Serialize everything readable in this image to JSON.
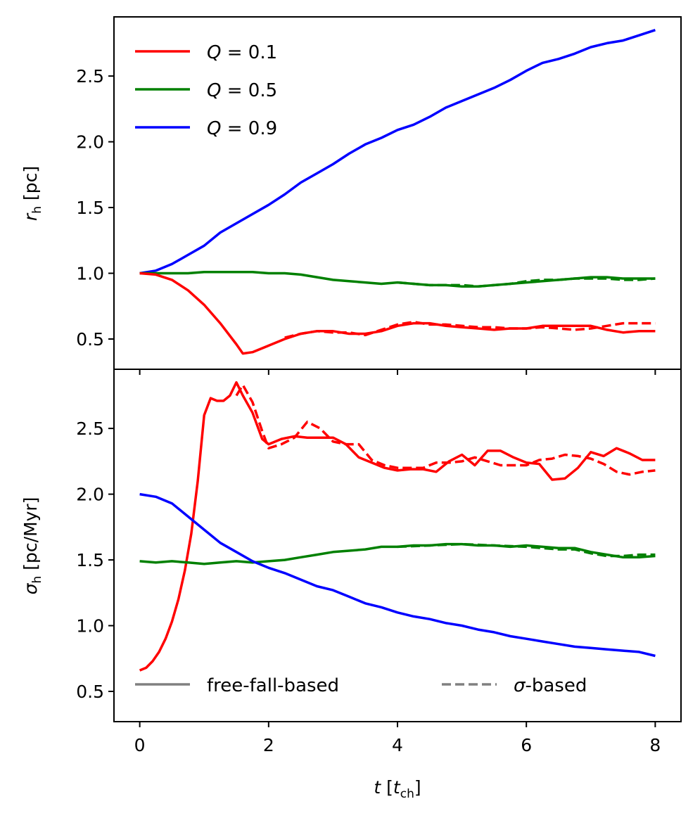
{
  "chart_data": [
    {
      "panel": "top",
      "type": "line",
      "ylabel_symbol": "r",
      "ylabel_subscript": "h",
      "ylabel_unit": "[pc]",
      "ylim": [
        0.27,
        2.95
      ],
      "xlim": [
        -0.4,
        8.4
      ],
      "yticks": [
        0.5,
        1.0,
        1.5,
        2.0,
        2.5
      ],
      "ytick_labels": [
        "0.5",
        "1.0",
        "1.5",
        "2.0",
        "2.5"
      ],
      "legend": [
        {
          "prefix": "Q",
          "suffix": " = 0.1",
          "color": "#ff0000",
          "style": "solid"
        },
        {
          "prefix": "Q",
          "suffix": " = 0.5",
          "color": "#008000",
          "style": "solid"
        },
        {
          "prefix": "Q",
          "suffix": " = 0.9",
          "color": "#0000ff",
          "style": "solid"
        }
      ],
      "series": [
        {
          "name": "Q=0.9 free-fall-based",
          "color": "#0000ff",
          "style": "solid",
          "x": [
            0,
            0.25,
            0.5,
            0.75,
            1.0,
            1.25,
            1.5,
            1.75,
            2.0,
            2.25,
            2.5,
            2.75,
            3.0,
            3.25,
            3.5,
            3.75,
            4.0,
            4.25,
            4.5,
            4.75,
            5.0,
            5.25,
            5.5,
            5.75,
            6.0,
            6.25,
            6.5,
            6.75,
            7.0,
            7.25,
            7.5,
            7.75,
            8.0
          ],
          "y": [
            1.0,
            1.02,
            1.07,
            1.14,
            1.21,
            1.31,
            1.38,
            1.45,
            1.52,
            1.6,
            1.69,
            1.76,
            1.83,
            1.91,
            1.98,
            2.03,
            2.09,
            2.13,
            2.19,
            2.26,
            2.31,
            2.36,
            2.41,
            2.47,
            2.54,
            2.6,
            2.63,
            2.67,
            2.72,
            2.75,
            2.77,
            2.81,
            2.85
          ]
        },
        {
          "name": "Q=0.5 free-fall-based",
          "color": "#008000",
          "style": "solid",
          "x": [
            0,
            0.25,
            0.5,
            0.75,
            1.0,
            1.25,
            1.5,
            1.75,
            2.0,
            2.25,
            2.5,
            2.75,
            3.0,
            3.25,
            3.5,
            3.75,
            4.0,
            4.25,
            4.5,
            4.75,
            5.0,
            5.25,
            5.5,
            5.75,
            6.0,
            6.25,
            6.5,
            6.75,
            7.0,
            7.25,
            7.5,
            7.75,
            8.0
          ],
          "y": [
            1.0,
            1.0,
            1.0,
            1.0,
            1.01,
            1.01,
            1.01,
            1.01,
            1.0,
            1.0,
            0.99,
            0.97,
            0.95,
            0.94,
            0.93,
            0.92,
            0.93,
            0.92,
            0.91,
            0.91,
            0.9,
            0.9,
            0.91,
            0.92,
            0.93,
            0.94,
            0.95,
            0.96,
            0.97,
            0.97,
            0.96,
            0.96,
            0.96
          ]
        },
        {
          "name": "Q=0.5 sigma-based",
          "color": "#008000",
          "style": "dashed",
          "x": [
            4.0,
            4.25,
            4.5,
            4.75,
            5.0,
            5.25,
            5.5,
            5.75,
            6.0,
            6.25,
            6.5,
            6.75,
            7.0,
            7.25,
            7.5,
            7.75,
            8.0
          ],
          "y": [
            0.93,
            0.92,
            0.91,
            0.91,
            0.91,
            0.9,
            0.91,
            0.92,
            0.94,
            0.95,
            0.95,
            0.96,
            0.96,
            0.96,
            0.95,
            0.95,
            0.96
          ]
        },
        {
          "name": "Q=0.1 free-fall-based",
          "color": "#ff0000",
          "style": "solid",
          "x": [
            0,
            0.25,
            0.5,
            0.75,
            1.0,
            1.25,
            1.5,
            1.6,
            1.75,
            2.0,
            2.25,
            2.5,
            2.75,
            3.0,
            3.25,
            3.5,
            3.75,
            4.0,
            4.25,
            4.5,
            4.75,
            5.0,
            5.25,
            5.5,
            5.75,
            6.0,
            6.25,
            6.5,
            6.75,
            7.0,
            7.25,
            7.5,
            7.75,
            8.0
          ],
          "y": [
            1.0,
            0.99,
            0.95,
            0.87,
            0.76,
            0.62,
            0.46,
            0.39,
            0.4,
            0.45,
            0.5,
            0.54,
            0.56,
            0.56,
            0.54,
            0.54,
            0.56,
            0.6,
            0.62,
            0.62,
            0.6,
            0.59,
            0.58,
            0.57,
            0.58,
            0.58,
            0.6,
            0.6,
            0.6,
            0.6,
            0.57,
            0.55,
            0.56,
            0.56
          ]
        },
        {
          "name": "Q=0.1 sigma-based",
          "color": "#ff0000",
          "style": "dashed",
          "x": [
            2.25,
            2.5,
            2.75,
            3.0,
            3.25,
            3.5,
            3.75,
            4.0,
            4.25,
            4.5,
            4.75,
            5.0,
            5.25,
            5.5,
            5.75,
            6.0,
            6.25,
            6.5,
            6.75,
            7.0,
            7.25,
            7.5,
            7.75,
            8.0
          ],
          "y": [
            0.51,
            0.54,
            0.56,
            0.55,
            0.55,
            0.53,
            0.57,
            0.61,
            0.63,
            0.61,
            0.61,
            0.6,
            0.59,
            0.59,
            0.58,
            0.58,
            0.59,
            0.58,
            0.57,
            0.58,
            0.6,
            0.62,
            0.62,
            0.62
          ]
        }
      ]
    },
    {
      "panel": "bottom",
      "type": "line",
      "ylabel_symbol": "σ",
      "ylabel_subscript": "h",
      "ylabel_unit": "[pc/Myr]",
      "ylim": [
        0.27,
        2.95
      ],
      "xlim": [
        -0.4,
        8.4
      ],
      "xlabel_symbol": "t",
      "xlabel_unit_symbol": "t",
      "xlabel_unit_subscript": "ch",
      "xticks": [
        0,
        2,
        4,
        6,
        8
      ],
      "xtick_labels": [
        "0",
        "2",
        "4",
        "6",
        "8"
      ],
      "yticks": [
        0.5,
        1.0,
        1.5,
        2.0,
        2.5
      ],
      "ytick_labels": [
        "0.5",
        "1.0",
        "1.5",
        "2.0",
        "2.5"
      ],
      "legend": [
        {
          "label": "free-fall-based",
          "color": "#808080",
          "style": "solid"
        },
        {
          "prefix": "σ",
          "suffix": "-based",
          "color": "#808080",
          "style": "dashed"
        }
      ],
      "series": [
        {
          "name": "Q=0.1 free-fall-based",
          "color": "#ff0000",
          "style": "solid",
          "x": [
            0,
            0.1,
            0.2,
            0.3,
            0.4,
            0.5,
            0.6,
            0.7,
            0.8,
            0.9,
            1.0,
            1.1,
            1.2,
            1.3,
            1.4,
            1.5,
            1.6,
            1.75,
            1.9,
            2.0,
            2.2,
            2.4,
            2.6,
            2.8,
            3.0,
            3.2,
            3.4,
            3.6,
            3.8,
            4.0,
            4.2,
            4.4,
            4.6,
            4.8,
            5.0,
            5.2,
            5.4,
            5.6,
            5.8,
            6.0,
            6.2,
            6.4,
            6.6,
            6.8,
            7.0,
            7.2,
            7.4,
            7.6,
            7.8,
            8.0
          ],
          "y": [
            0.66,
            0.68,
            0.73,
            0.8,
            0.9,
            1.03,
            1.2,
            1.42,
            1.7,
            2.1,
            2.6,
            2.73,
            2.71,
            2.71,
            2.75,
            2.85,
            2.75,
            2.62,
            2.42,
            2.38,
            2.42,
            2.44,
            2.43,
            2.43,
            2.43,
            2.38,
            2.28,
            2.24,
            2.2,
            2.18,
            2.19,
            2.19,
            2.17,
            2.25,
            2.3,
            2.22,
            2.33,
            2.33,
            2.28,
            2.24,
            2.23,
            2.11,
            2.12,
            2.2,
            2.32,
            2.29,
            2.35,
            2.31,
            2.26,
            2.26
          ]
        },
        {
          "name": "Q=0.1 sigma-based",
          "color": "#ff0000",
          "style": "dashed",
          "x": [
            1.5,
            1.6,
            1.75,
            1.9,
            2.0,
            2.2,
            2.4,
            2.6,
            2.8,
            3.0,
            3.2,
            3.4,
            3.6,
            3.8,
            4.0,
            4.2,
            4.4,
            4.6,
            4.8,
            5.0,
            5.2,
            5.4,
            5.6,
            5.8,
            6.0,
            6.2,
            6.4,
            6.6,
            6.8,
            7.0,
            7.2,
            7.4,
            7.6,
            7.8,
            8.0
          ],
          "y": [
            2.75,
            2.83,
            2.7,
            2.48,
            2.35,
            2.38,
            2.43,
            2.55,
            2.5,
            2.4,
            2.38,
            2.38,
            2.26,
            2.22,
            2.2,
            2.2,
            2.2,
            2.24,
            2.24,
            2.25,
            2.28,
            2.25,
            2.22,
            2.22,
            2.22,
            2.26,
            2.27,
            2.3,
            2.29,
            2.27,
            2.23,
            2.17,
            2.15,
            2.17,
            2.18
          ]
        },
        {
          "name": "Q=0.5 free-fall-based",
          "color": "#008000",
          "style": "solid",
          "x": [
            0,
            0.25,
            0.5,
            0.75,
            1.0,
            1.25,
            1.5,
            1.75,
            2.0,
            2.25,
            2.5,
            2.75,
            3.0,
            3.25,
            3.5,
            3.75,
            4.0,
            4.25,
            4.5,
            4.75,
            5.0,
            5.25,
            5.5,
            5.75,
            6.0,
            6.25,
            6.5,
            6.75,
            7.0,
            7.25,
            7.5,
            7.75,
            8.0
          ],
          "y": [
            1.49,
            1.48,
            1.49,
            1.48,
            1.47,
            1.48,
            1.49,
            1.48,
            1.49,
            1.5,
            1.52,
            1.54,
            1.56,
            1.57,
            1.58,
            1.6,
            1.6,
            1.61,
            1.61,
            1.62,
            1.62,
            1.61,
            1.61,
            1.6,
            1.61,
            1.6,
            1.59,
            1.59,
            1.56,
            1.54,
            1.52,
            1.52,
            1.53
          ]
        },
        {
          "name": "Q=0.5 sigma-based",
          "color": "#008000",
          "style": "dashed",
          "x": [
            4.0,
            4.5,
            5.0,
            5.5,
            6.0,
            6.5,
            6.75,
            7.0,
            7.25,
            7.5,
            7.75,
            8.0
          ],
          "y": [
            1.6,
            1.61,
            1.62,
            1.61,
            1.6,
            1.58,
            1.58,
            1.55,
            1.53,
            1.53,
            1.54,
            1.54
          ]
        },
        {
          "name": "Q=0.9 free-fall-based",
          "color": "#0000ff",
          "style": "solid",
          "x": [
            0,
            0.25,
            0.5,
            0.75,
            1.0,
            1.25,
            1.5,
            1.75,
            2.0,
            2.25,
            2.5,
            2.75,
            3.0,
            3.25,
            3.5,
            3.75,
            4.0,
            4.25,
            4.5,
            4.75,
            5.0,
            5.25,
            5.5,
            5.75,
            6.0,
            6.25,
            6.5,
            6.75,
            7.0,
            7.25,
            7.5,
            7.75,
            8.0
          ],
          "y": [
            2.0,
            1.98,
            1.93,
            1.83,
            1.73,
            1.63,
            1.56,
            1.49,
            1.44,
            1.4,
            1.35,
            1.3,
            1.27,
            1.22,
            1.17,
            1.14,
            1.1,
            1.07,
            1.05,
            1.02,
            1.0,
            0.97,
            0.95,
            0.92,
            0.9,
            0.88,
            0.86,
            0.84,
            0.83,
            0.82,
            0.81,
            0.8,
            0.77
          ]
        }
      ]
    }
  ]
}
